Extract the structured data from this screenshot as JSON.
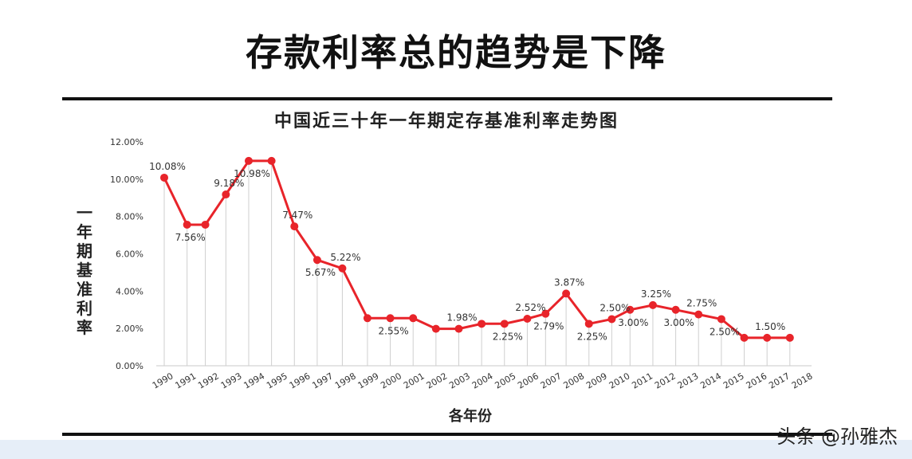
{
  "page": {
    "headline": "存款利率总的趋势是下降",
    "watermark": "头条 @孙雅杰"
  },
  "chart_data": {
    "type": "line",
    "title": "中国近三十年一年期定存基准利率走势图",
    "xlabel": "各年份",
    "ylabel": "一年期基准利率",
    "ylim": [
      0,
      12
    ],
    "yticks": [
      "0.00%",
      "2.00%",
      "4.00%",
      "6.00%",
      "8.00%",
      "10.00%",
      "12.00%"
    ],
    "x": [
      "1990",
      "1991",
      "1992",
      "1993",
      "1994",
      "1995",
      "1996",
      "1997",
      "1998",
      "1999",
      "2000",
      "2001",
      "2002",
      "2003",
      "2004",
      "2005",
      "2006",
      "2007",
      "2008",
      "2009",
      "2010",
      "2011",
      "2012",
      "2013",
      "2014",
      "2015",
      "2016",
      "2017",
      "2018"
    ],
    "series": [
      {
        "color": "#e8242a",
        "points": [
          {
            "year": 1990.0,
            "value": 10.08
          },
          {
            "year": 1991.0,
            "value": 7.56
          },
          {
            "year": 1991.8,
            "value": 7.56
          },
          {
            "year": 1992.7,
            "value": 9.18
          },
          {
            "year": 1993.7,
            "value": 10.98
          },
          {
            "year": 1994.7,
            "value": 10.98
          },
          {
            "year": 1995.7,
            "value": 7.47
          },
          {
            "year": 1996.7,
            "value": 5.67
          },
          {
            "year": 1997.8,
            "value": 5.22
          },
          {
            "year": 1998.9,
            "value": 2.55
          },
          {
            "year": 1999.9,
            "value": 2.55
          },
          {
            "year": 2000.9,
            "value": 2.55
          },
          {
            "year": 2001.9,
            "value": 1.98
          },
          {
            "year": 2002.9,
            "value": 1.98
          },
          {
            "year": 2003.9,
            "value": 2.25
          },
          {
            "year": 2004.9,
            "value": 2.25
          },
          {
            "year": 2005.9,
            "value": 2.52
          },
          {
            "year": 2006.7,
            "value": 2.79
          },
          {
            "year": 2007.6,
            "value": 3.87
          },
          {
            "year": 2008.6,
            "value": 2.25
          },
          {
            "year": 2009.6,
            "value": 2.5
          },
          {
            "year": 2010.4,
            "value": 3.0
          },
          {
            "year": 2011.4,
            "value": 3.25
          },
          {
            "year": 2012.4,
            "value": 3.0
          },
          {
            "year": 2013.4,
            "value": 2.75
          },
          {
            "year": 2014.4,
            "value": 2.5
          },
          {
            "year": 2015.4,
            "value": 1.5
          },
          {
            "year": 2016.4,
            "value": 1.5
          },
          {
            "year": 2017.4,
            "value": 1.5
          }
        ]
      }
    ],
    "annotations": [
      {
        "text": "10.08%",
        "point": 0
      },
      {
        "text": "7.56%",
        "point": 1
      },
      {
        "text": "9.18%",
        "point": 3
      },
      {
        "text": "10.98%",
        "point": 4
      },
      {
        "text": "7.47%",
        "point": 6
      },
      {
        "text": "5.67%",
        "point": 7
      },
      {
        "text": "5.22%",
        "point": 8
      },
      {
        "text": "2.55%",
        "point": 10
      },
      {
        "text": "1.98%",
        "point": 13
      },
      {
        "text": "2.25%",
        "point": 15
      },
      {
        "text": "2.52%",
        "point": 16
      },
      {
        "text": "2.79%",
        "point": 17
      },
      {
        "text": "3.87%",
        "point": 18
      },
      {
        "text": "2.25%",
        "point": 19
      },
      {
        "text": "2.50%",
        "point": 20
      },
      {
        "text": "3.00%",
        "point": 21
      },
      {
        "text": "3.25%",
        "point": 22
      },
      {
        "text": "3.00%",
        "point": 23
      },
      {
        "text": "2.75%",
        "point": 24
      },
      {
        "text": "2.50%",
        "point": 25
      },
      {
        "text": "1.50%",
        "point": 27
      }
    ],
    "grid": false,
    "legend": "none"
  }
}
